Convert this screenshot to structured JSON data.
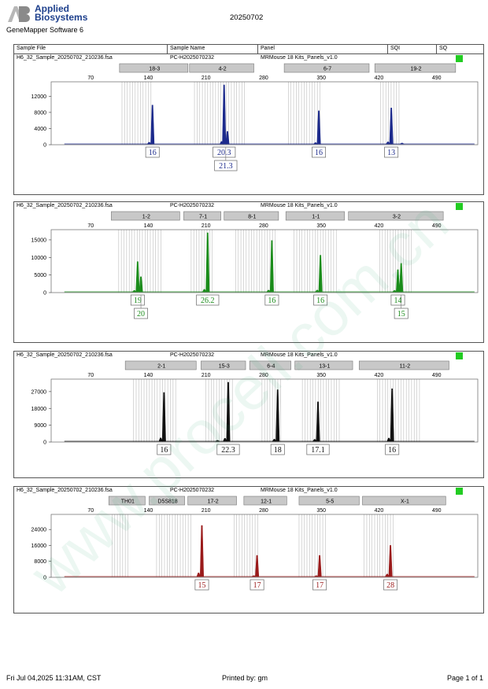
{
  "header": {
    "logo_line1": "Applied",
    "logo_line2": "Biosystems",
    "software": "GeneMapper Software 6",
    "date_title": "20250702"
  },
  "columns": {
    "sample_file": "Sample File",
    "sample_name": "Sample Name",
    "panel": "Panel",
    "sqi": "SQI",
    "sq": "SQ"
  },
  "footer": {
    "datetime": "Fri Jul 04,2025 11:31AM, CST",
    "printed_by": "Printed by: gm",
    "page": "Page 1 of 1"
  },
  "watermark": "www.procell.com.cn",
  "colors": {
    "blue": "#1c2a8c",
    "green": "#1a8c1a",
    "black": "#111111",
    "red": "#9a1a1a",
    "status_ok": "#22cc22",
    "bin_gray": "#bdbdbd",
    "marker_fill": "#c8c8c8"
  },
  "chart_data": [
    {
      "type": "line",
      "dye": "blue",
      "sample_file": "H6_32_Sample_20250702_210236.fsa",
      "sample_name": "PC-H2025070232",
      "panel": "MRMouse 18 Kits_Panels_v1.0",
      "x_ticks": [
        70,
        140,
        210,
        280,
        350,
        420,
        490
      ],
      "y_ticks": [
        0,
        4000,
        8000,
        12000
      ],
      "ylim": [
        0,
        14800
      ],
      "markers": [
        {
          "name": "18-3",
          "start": 105,
          "end": 190
        },
        {
          "name": "4-2",
          "start": 190,
          "end": 270
        },
        {
          "name": "6-7",
          "start": 305,
          "end": 410
        },
        {
          "name": "19-2",
          "start": 415,
          "end": 515
        }
      ],
      "peaks": [
        {
          "x": 145,
          "height": 9800
        },
        {
          "x": 141,
          "height": 600
        },
        {
          "x": 232,
          "height": 14800
        },
        {
          "x": 236,
          "height": 3300
        },
        {
          "x": 229,
          "height": 800
        },
        {
          "x": 347,
          "height": 8400
        },
        {
          "x": 343,
          "height": 500
        },
        {
          "x": 435,
          "height": 9100
        },
        {
          "x": 431,
          "height": 700
        },
        {
          "x": 448,
          "height": 400
        }
      ],
      "alleles": [
        {
          "label": "16",
          "x": 145,
          "row": 0
        },
        {
          "label": "20.3",
          "x": 232,
          "row": 0
        },
        {
          "label": "21.3",
          "x": 234,
          "row": 1
        },
        {
          "label": "16",
          "x": 347,
          "row": 0
        },
        {
          "label": "13",
          "x": 435,
          "row": 0
        }
      ],
      "bin_ranges": [
        [
          108,
          146
        ],
        [
          196,
          258
        ],
        [
          310,
          350
        ],
        [
          422,
          446
        ]
      ]
    },
    {
      "type": "line",
      "dye": "green",
      "sample_file": "H6_32_Sample_20250702_210236.fsa",
      "sample_name": "PC-H2025070232",
      "panel": "MRMouse 18 Kits_Panels_v1.0",
      "x_ticks": [
        70,
        140,
        210,
        280,
        350,
        420,
        490
      ],
      "y_ticks": [
        0,
        5000,
        10000,
        15000
      ],
      "ylim": [
        0,
        17000
      ],
      "markers": [
        {
          "name": "1-2",
          "start": 95,
          "end": 180
        },
        {
          "name": "7-1",
          "start": 183,
          "end": 230
        },
        {
          "name": "8-1",
          "start": 232,
          "end": 300
        },
        {
          "name": "1-1",
          "start": 307,
          "end": 380
        },
        {
          "name": "3-2",
          "start": 383,
          "end": 500
        }
      ],
      "peaks": [
        {
          "x": 127,
          "height": 8800
        },
        {
          "x": 131,
          "height": 4500
        },
        {
          "x": 123,
          "height": 600
        },
        {
          "x": 212,
          "height": 17000
        },
        {
          "x": 208,
          "height": 900
        },
        {
          "x": 290,
          "height": 14800
        },
        {
          "x": 286,
          "height": 700
        },
        {
          "x": 349,
          "height": 10600
        },
        {
          "x": 345,
          "height": 700
        },
        {
          "x": 443,
          "height": 6500
        },
        {
          "x": 447,
          "height": 8300
        },
        {
          "x": 439,
          "height": 600
        }
      ],
      "alleles": [
        {
          "label": "19",
          "x": 127,
          "row": 0
        },
        {
          "label": "20",
          "x": 131,
          "row": 1
        },
        {
          "label": "26.2",
          "x": 212,
          "row": 0
        },
        {
          "label": "16",
          "x": 290,
          "row": 0
        },
        {
          "label": "16",
          "x": 349,
          "row": 0
        },
        {
          "label": "14",
          "x": 443,
          "row": 0
        },
        {
          "label": "15",
          "x": 447,
          "row": 1
        }
      ],
      "bin_ranges": [
        [
          104,
          156
        ],
        [
          192,
          218
        ],
        [
          246,
          296
        ],
        [
          317,
          370
        ],
        [
          421,
          462
        ]
      ]
    },
    {
      "type": "line",
      "dye": "black",
      "sample_file": "H6_32_Sample_20250702_210236.fsa",
      "sample_name": "PC-H2025070232",
      "panel": "MRMouse 18 Kits_Panels_v1.0",
      "x_ticks": [
        70,
        140,
        210,
        280,
        350,
        420,
        490
      ],
      "y_ticks": [
        0,
        9000,
        18000,
        27000
      ],
      "ylim": [
        0,
        32000
      ],
      "markers": [
        {
          "name": "2-1",
          "start": 112,
          "end": 200
        },
        {
          "name": "15-3",
          "start": 204,
          "end": 260
        },
        {
          "name": "6-4",
          "start": 263,
          "end": 315
        },
        {
          "name": "13-1",
          "start": 318,
          "end": 390
        },
        {
          "name": "11-2",
          "start": 396,
          "end": 507
        }
      ],
      "peaks": [
        {
          "x": 159,
          "height": 26500
        },
        {
          "x": 155,
          "height": 2200
        },
        {
          "x": 237,
          "height": 32000
        },
        {
          "x": 233,
          "height": 2000
        },
        {
          "x": 224,
          "height": 900
        },
        {
          "x": 297,
          "height": 28000
        },
        {
          "x": 293,
          "height": 1500
        },
        {
          "x": 346,
          "height": 21500
        },
        {
          "x": 342,
          "height": 1400
        },
        {
          "x": 436,
          "height": 28500
        },
        {
          "x": 432,
          "height": 2100
        }
      ],
      "alleles": [
        {
          "label": "16",
          "x": 159,
          "row": 0
        },
        {
          "label": "22.3",
          "x": 237,
          "row": 0
        },
        {
          "label": "18",
          "x": 297,
          "row": 0
        },
        {
          "label": "17.1",
          "x": 346,
          "row": 0
        },
        {
          "label": "16",
          "x": 436,
          "row": 0
        }
      ],
      "bin_ranges": [
        [
          122,
          176
        ],
        [
          210,
          244
        ],
        [
          278,
          302
        ],
        [
          327,
          372
        ],
        [
          418,
          470
        ]
      ]
    },
    {
      "type": "line",
      "dye": "red",
      "sample_file": "H6_32_Sample_20250702_210236.fsa",
      "sample_name": "PC-H2025070232",
      "panel": "MRMouse 18 Kits_Panels_v1.0",
      "x_ticks": [
        70,
        140,
        210,
        280,
        350,
        420,
        490
      ],
      "y_ticks": [
        0,
        8000,
        16000,
        24000
      ],
      "ylim": [
        0,
        30000
      ],
      "markers": [
        {
          "name": "TH01",
          "start": 92,
          "end": 138
        },
        {
          "name": "D5S818",
          "start": 141,
          "end": 186
        },
        {
          "name": "17-2",
          "start": 188,
          "end": 249
        },
        {
          "name": "12-1",
          "start": 256,
          "end": 310
        },
        {
          "name": "5-5",
          "start": 323,
          "end": 398
        },
        {
          "name": "X-1",
          "start": 400,
          "end": 503
        }
      ],
      "peaks": [
        {
          "x": 205,
          "height": 26000
        },
        {
          "x": 201,
          "height": 2200
        },
        {
          "x": 272,
          "height": 11000
        },
        {
          "x": 268,
          "height": 800
        },
        {
          "x": 348,
          "height": 11000
        },
        {
          "x": 344,
          "height": 800
        },
        {
          "x": 434,
          "height": 16000
        },
        {
          "x": 430,
          "height": 1600
        }
      ],
      "alleles": [
        {
          "label": "15",
          "x": 205,
          "row": 0
        },
        {
          "label": "17",
          "x": 272,
          "row": 0
        },
        {
          "label": "17",
          "x": 348,
          "row": 0
        },
        {
          "label": "28",
          "x": 434,
          "row": 0
        }
      ],
      "bin_ranges": [
        [
          96,
          118
        ],
        [
          150,
          192
        ],
        [
          244,
          274
        ],
        [
          323,
          356
        ],
        [
          402,
          438
        ]
      ]
    }
  ]
}
